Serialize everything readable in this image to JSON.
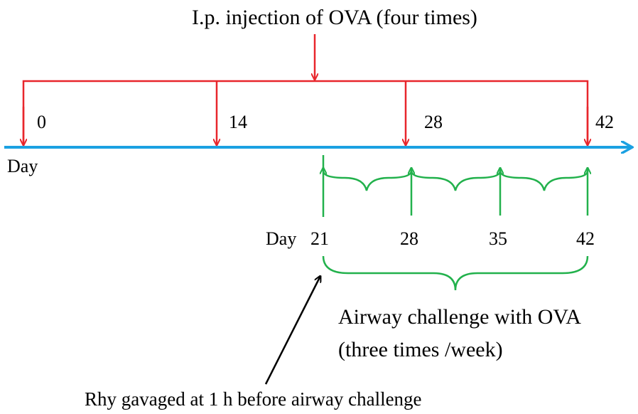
{
  "colors": {
    "injection": "#e8262c",
    "timeline": "#1ba1e2",
    "challenge": "#22b14c",
    "pointer": "#000000"
  },
  "top_label": "I.p. injection of OVA (four times)",
  "timeline": {
    "axis_label": "Day",
    "injection_days": [
      "0",
      "14",
      "28",
      "42"
    ]
  },
  "challenge": {
    "axis_label": "Day",
    "days": [
      "21",
      "28",
      "35",
      "42"
    ],
    "label_line1": "Airway challenge with OVA",
    "label_line2": "(three times /week)"
  },
  "rhy_note": "Rhy gavaged at 1 h before airway challenge"
}
